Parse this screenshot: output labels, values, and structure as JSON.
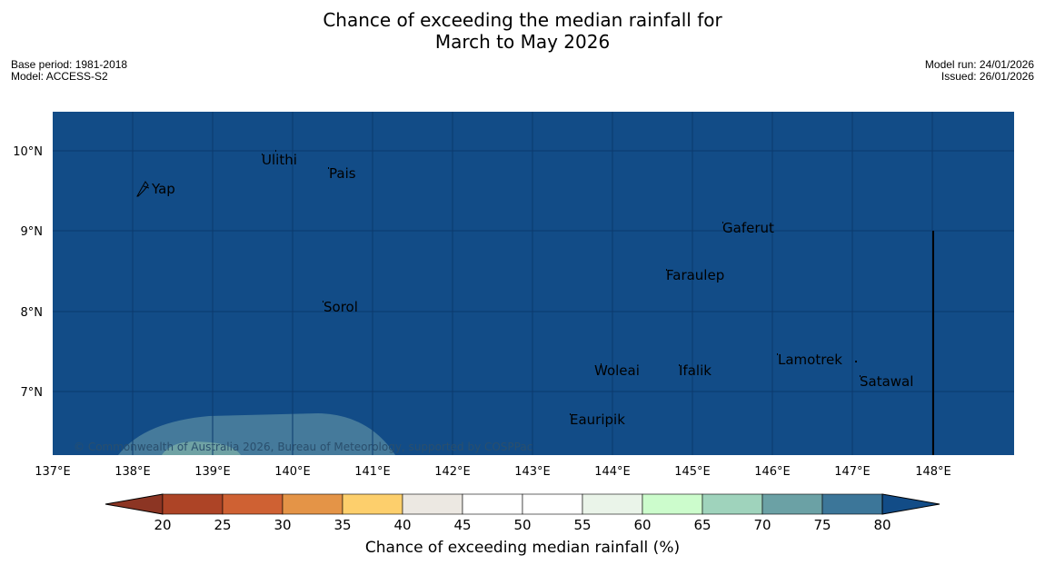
{
  "title_line1": "Chance of exceeding the median rainfall for",
  "title_line2": "March to May 2026",
  "base_period": "Base period: 1981-2018",
  "model": "Model: ACCESS-S2",
  "model_run": "Model run: 24/01/2026",
  "issued": "Issued: 26/01/2026",
  "copyright": "© Commonwealth of Australia 2026, Bureau of Meteorology, supported by COSPPac",
  "longitude_labels": [
    "137°E",
    "138°E",
    "139°E",
    "140°E",
    "141°E",
    "142°E",
    "143°E",
    "144°E",
    "145°E",
    "146°E",
    "147°E",
    "148°E"
  ],
  "latitude_labels": [
    "10°N",
    "9°N",
    "8°N",
    "7°N"
  ],
  "place_labels": {
    "ulithi": "Ulithi",
    "pais": "Pais",
    "yap": "Yap",
    "gaferut": "Gaferut",
    "faraulep": "Faraulep",
    "sorol": "Sorol",
    "woleai": "Woleai",
    "ifalik": "Ifalik",
    "lamotrek": "Lamotrek",
    "satawal": "Satawal",
    "eauripik": "Eauripik"
  },
  "colorbar": {
    "ticks": [
      "20",
      "25",
      "30",
      "35",
      "40",
      "45",
      "50",
      "55",
      "60",
      "65",
      "70",
      "75",
      "80"
    ],
    "colors": [
      "#ad4426",
      "#cf6133",
      "#e49447",
      "#fdcf6c",
      "#ece8e2",
      "#ffffff",
      "#ffffff",
      "#eaf4e9",
      "#ccfccc",
      "#9fd3bc",
      "#6ba1a5",
      "#3c7699"
    ],
    "under_color": "#8c3523",
    "over_color": "#124c87",
    "label": "Chance of exceeding median rainfall (%)"
  },
  "map_colors": {
    "ocean_70_80": "#124c87",
    "band_65_70": "#457a9b",
    "band_60_65": "#6fa2a4"
  }
}
